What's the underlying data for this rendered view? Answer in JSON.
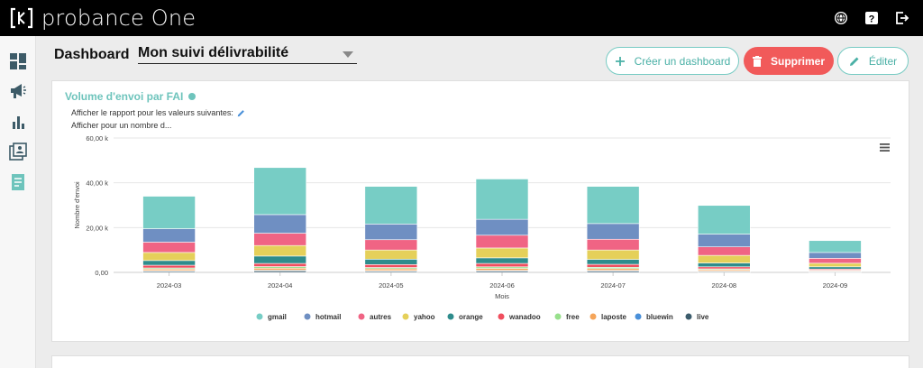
{
  "app": {
    "brand": "probance One"
  },
  "header": {
    "dashboard_label": "Dashboard",
    "dashboard_selected": "Mon suivi délivrabilité",
    "create_label": "Créer un dashboard",
    "delete_label": "Supprimer",
    "edit_label": "Éditer"
  },
  "top_icons": [
    "globe-icon",
    "help-icon",
    "logout-icon"
  ],
  "sidebar": {
    "items": [
      "dashboard-icon",
      "campaign-icon",
      "stats-icon",
      "contacts-icon",
      "reports-icon"
    ]
  },
  "card": {
    "title": "Volume d'envoi par FAI",
    "filter_line1": "Afficher le rapport pour les valeurs suivantes:",
    "filter_line2": "Afficher pour un nombre d..."
  },
  "colors": {
    "accent": "#6ec4bc",
    "delete": "#f15a5a",
    "gmail": "#77cdc5",
    "hotmail": "#6f8fc2",
    "autres": "#f06484",
    "yahoo": "#e5d05a",
    "orange": "#2e8c8c",
    "wanadoo": "#f04e5e",
    "free": "#98e08c",
    "laposte": "#f5a55a",
    "bluewin": "#4a90d9",
    "live": "#3c5c6c"
  },
  "chart_data": {
    "type": "bar",
    "stacked": true,
    "categories": [
      "2024-03",
      "2024-04",
      "2024-05",
      "2024-06",
      "2024-07",
      "2024-08",
      "2024-09"
    ],
    "xlabel": "Mois",
    "ylabel": "Nombre d'envoi",
    "ylim": [
      0,
      60000
    ],
    "yticks": [
      "0,00",
      "20,00 k",
      "40,00 k",
      "60,00 k"
    ],
    "grid": true,
    "legend_position": "bottom",
    "series": [
      {
        "name": "live",
        "values": [
          500,
          700,
          500,
          600,
          600,
          400,
          300
        ]
      },
      {
        "name": "bluewin",
        "values": [
          300,
          300,
          300,
          300,
          300,
          200,
          100
        ]
      },
      {
        "name": "laposte",
        "values": [
          700,
          900,
          800,
          900,
          800,
          600,
          300
        ]
      },
      {
        "name": "free",
        "values": [
          500,
          700,
          600,
          700,
          600,
          400,
          300
        ]
      },
      {
        "name": "wanadoo",
        "values": [
          1200,
          1400,
          1300,
          1500,
          1300,
          900,
          500
        ]
      },
      {
        "name": "orange",
        "values": [
          2100,
          3300,
          2400,
          2500,
          2200,
          1700,
          1000
        ]
      },
      {
        "name": "yahoo",
        "values": [
          3600,
          4700,
          4100,
          4400,
          4200,
          3400,
          1600
        ]
      },
      {
        "name": "autres",
        "values": [
          4600,
          5500,
          4600,
          5700,
          4800,
          3800,
          2200
        ]
      },
      {
        "name": "hotmail",
        "values": [
          6000,
          8300,
          7000,
          7100,
          7000,
          5700,
          2600
        ]
      },
      {
        "name": "gmail",
        "values": [
          14500,
          21000,
          16800,
          18000,
          16600,
          12800,
          5300
        ]
      }
    ],
    "legend": [
      "gmail",
      "hotmail",
      "autres",
      "yahoo",
      "orange",
      "wanadoo",
      "free",
      "laposte",
      "bluewin",
      "live"
    ]
  }
}
